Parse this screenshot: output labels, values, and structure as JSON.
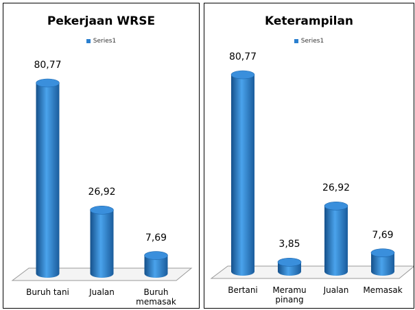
{
  "chart_data": [
    {
      "type": "bar",
      "title": "Pekerjaan WRSE",
      "categories": [
        "Buruh tani",
        "Jualan",
        "Buruh memasak"
      ],
      "series": [
        {
          "name": "Series1",
          "color": "#2a7fcf",
          "values": [
            80.77,
            26.92,
            7.69
          ],
          "value_labels": [
            "80,77",
            "26,92",
            "7,69"
          ]
        }
      ],
      "legend": "top"
    },
    {
      "type": "bar",
      "title": "Keterampilan",
      "categories": [
        "Bertani",
        "Meramu pinang",
        "Jualan",
        "Memasak"
      ],
      "series": [
        {
          "name": "Series1",
          "color": "#2a7fcf",
          "values": [
            80.77,
            3.85,
            26.92,
            7.69
          ],
          "value_labels": [
            "80,77",
            "3,85",
            "26,92",
            "7,69"
          ]
        }
      ],
      "legend": "top"
    }
  ]
}
